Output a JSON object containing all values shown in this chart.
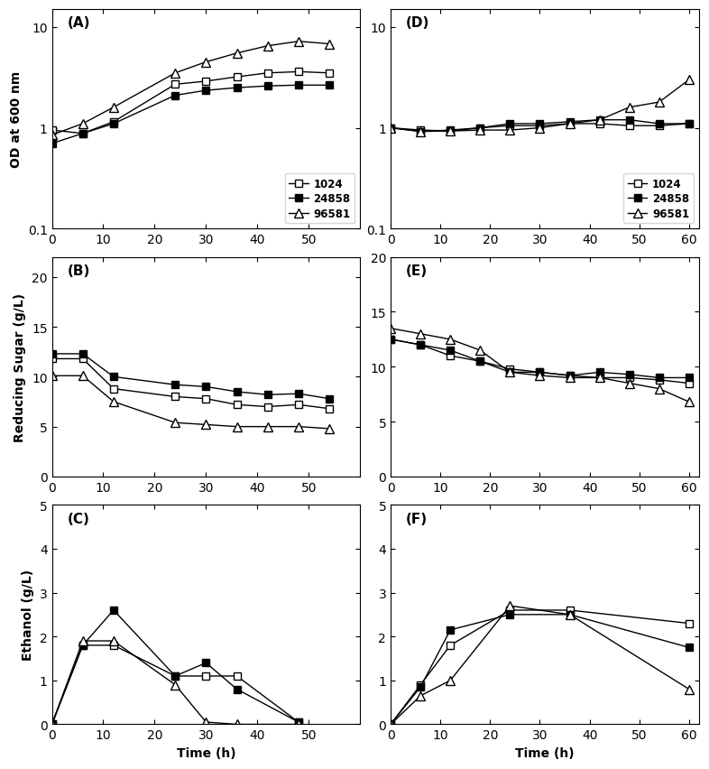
{
  "A": {
    "time": [
      0,
      6,
      12,
      24,
      30,
      36,
      42,
      48,
      54
    ],
    "1024": [
      0.95,
      0.88,
      1.15,
      2.7,
      2.9,
      3.2,
      3.5,
      3.6,
      3.5
    ],
    "24858": [
      0.7,
      0.88,
      1.1,
      2.1,
      2.35,
      2.5,
      2.6,
      2.65,
      2.65
    ],
    "96581": [
      0.85,
      1.1,
      1.6,
      3.5,
      4.5,
      5.5,
      6.5,
      7.2,
      6.8
    ]
  },
  "B": {
    "time": [
      0,
      6,
      12,
      24,
      30,
      36,
      42,
      48,
      54
    ],
    "1024": [
      11.8,
      11.8,
      8.8,
      8.0,
      7.8,
      7.2,
      7.0,
      7.2,
      6.8
    ],
    "24858": [
      12.3,
      12.3,
      10.0,
      9.2,
      9.0,
      8.5,
      8.2,
      8.3,
      7.8
    ],
    "96581": [
      10.1,
      10.1,
      7.5,
      5.4,
      5.2,
      5.0,
      5.0,
      5.0,
      4.8
    ]
  },
  "C": {
    "time": [
      0,
      6,
      12,
      24,
      30,
      36,
      48
    ],
    "1024": [
      0.0,
      1.8,
      1.8,
      1.1,
      1.1,
      1.1,
      0.05
    ],
    "24858": [
      0.0,
      1.8,
      2.6,
      1.1,
      1.4,
      0.8,
      0.05
    ],
    "96581": [
      0.0,
      1.9,
      1.9,
      0.9,
      0.05,
      0.0,
      0.0
    ]
  },
  "D": {
    "time": [
      0,
      6,
      12,
      18,
      24,
      30,
      36,
      42,
      48,
      54,
      60
    ],
    "1024": [
      1.0,
      0.95,
      0.93,
      1.0,
      1.05,
      1.05,
      1.1,
      1.1,
      1.05,
      1.05,
      1.1
    ],
    "24858": [
      1.0,
      0.92,
      0.95,
      1.0,
      1.1,
      1.1,
      1.15,
      1.2,
      1.2,
      1.1,
      1.1
    ],
    "96581": [
      1.0,
      0.92,
      0.93,
      0.95,
      0.95,
      1.0,
      1.1,
      1.2,
      1.6,
      1.8,
      3.0
    ]
  },
  "E": {
    "time": [
      0,
      6,
      12,
      18,
      24,
      30,
      36,
      42,
      48,
      54,
      60
    ],
    "1024": [
      12.5,
      12.0,
      11.0,
      10.5,
      9.8,
      9.5,
      9.2,
      9.0,
      9.0,
      8.8,
      8.5
    ],
    "24858": [
      12.5,
      12.0,
      11.5,
      10.5,
      9.5,
      9.5,
      9.2,
      9.5,
      9.3,
      9.0,
      9.0
    ],
    "96581": [
      13.5,
      13.0,
      12.5,
      11.5,
      9.5,
      9.2,
      9.0,
      9.0,
      8.5,
      8.0,
      6.8
    ]
  },
  "F": {
    "time": [
      0,
      6,
      12,
      24,
      36,
      60
    ],
    "1024": [
      0.0,
      0.9,
      1.8,
      2.6,
      2.6,
      2.3
    ],
    "24858": [
      0.0,
      0.85,
      2.15,
      2.5,
      2.5,
      1.75
    ],
    "96581": [
      0.0,
      0.65,
      1.0,
      2.7,
      2.5,
      0.8
    ]
  },
  "panel_labels": [
    "(A)",
    "(B)",
    "(C)",
    "(D)",
    "(E)",
    "(F)"
  ],
  "legend_labels": [
    "1024",
    "24858",
    "96581"
  ],
  "ylabel_A": "OD at 600 nm",
  "ylabel_B": "Reducing Sugar (g/L)",
  "ylabel_C": "Ethanol (g/L)",
  "xlabel": "Time (h)",
  "ylim_A": [
    0.1,
    15
  ],
  "ylim_B": [
    0,
    22
  ],
  "ylim_C": [
    0,
    5
  ],
  "ylim_D": [
    0.1,
    15
  ],
  "ylim_E": [
    0,
    20
  ],
  "ylim_F": [
    0,
    5
  ],
  "xlim_left": [
    0,
    60
  ],
  "xlim_right": [
    0,
    62
  ],
  "xticks_left": [
    0,
    10,
    20,
    30,
    40,
    50
  ],
  "xticks_right": [
    0,
    10,
    20,
    30,
    40,
    50,
    60
  ],
  "yticks_B": [
    0,
    5,
    10,
    15,
    20
  ],
  "yticks_C": [
    0,
    1,
    2,
    3,
    4,
    5
  ],
  "yticks_E": [
    5,
    10,
    15,
    20
  ],
  "yticks_F": [
    0,
    1,
    2,
    3,
    4,
    5
  ]
}
